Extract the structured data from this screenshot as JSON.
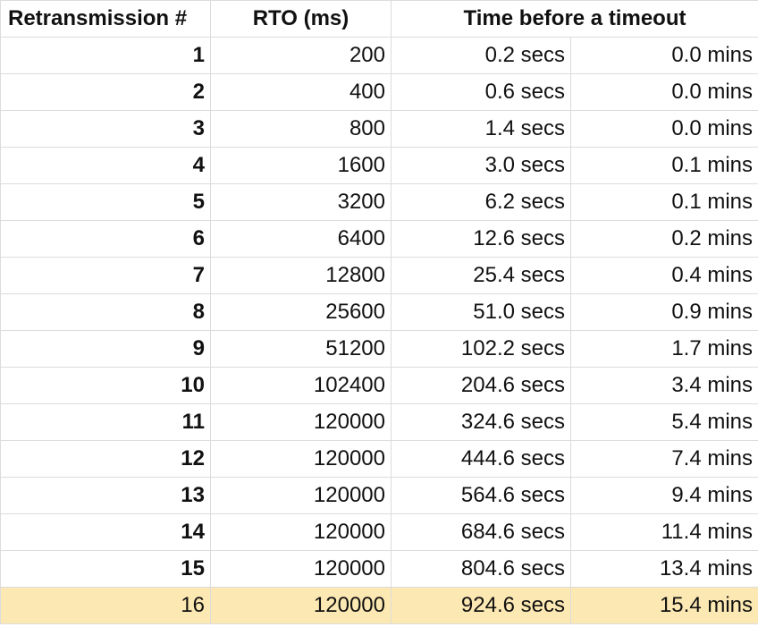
{
  "table": {
    "header": [
      "Retransmission #",
      "RTO (ms)",
      "Time before a timeout"
    ],
    "rows": [
      [
        1,
        200,
        "0.2 secs",
        "0.0 mins"
      ],
      [
        2,
        400,
        "0.6 secs",
        "0.0 mins"
      ],
      [
        3,
        800,
        "1.4 secs",
        "0.0 mins"
      ],
      [
        4,
        1600,
        "3.0 secs",
        "0.1 mins"
      ],
      [
        5,
        3200,
        "6.2 secs",
        "0.1 mins"
      ],
      [
        6,
        6400,
        "12.6 secs",
        "0.2 mins"
      ],
      [
        7,
        12800,
        "25.4 secs",
        "0.4 mins"
      ],
      [
        8,
        25600,
        "51.0 secs",
        "0.9 mins"
      ],
      [
        9,
        51200,
        "102.2 secs",
        "1.7 mins"
      ],
      [
        10,
        102400,
        "204.6 secs",
        "3.4 mins"
      ],
      [
        11,
        120000,
        "324.6 secs",
        "5.4 mins"
      ],
      [
        12,
        120000,
        "444.6 secs",
        "7.4 mins"
      ],
      [
        13,
        120000,
        "564.6 secs",
        "9.4 mins"
      ],
      [
        14,
        120000,
        "684.6 secs",
        "11.4 mins"
      ],
      [
        15,
        120000,
        "804.6 secs",
        "13.4 mins"
      ],
      [
        16,
        120000,
        "924.6 secs",
        "15.4 mins"
      ]
    ]
  }
}
